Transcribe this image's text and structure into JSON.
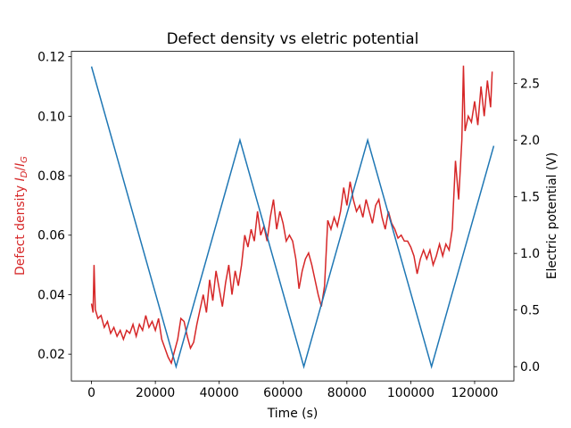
{
  "chart_data": {
    "type": "line",
    "title": "Defect density vs eletric potential",
    "xlabel": "Time (s)",
    "ylabel": [
      "Defect density ",
      "I",
      "D",
      "/",
      "I",
      "G"
    ],
    "y2label": "Electric potential (V)",
    "xlim": [
      -6300,
      132300
    ],
    "ylim": [
      0.011,
      0.1218
    ],
    "y2lim": [
      -0.126,
      2.784
    ],
    "xticks": [
      0,
      20000,
      40000,
      60000,
      80000,
      100000,
      120000
    ],
    "yticks": [
      0.02,
      0.04,
      0.06,
      0.08,
      {
        "value": 0.1,
        "label": "0.10"
      },
      0.12
    ],
    "y2ticks": [
      {
        "value": 0,
        "label": "0.0"
      },
      0.5,
      {
        "value": 1,
        "label": "1.0"
      },
      1.5,
      {
        "value": 2,
        "label": "2.0"
      },
      2.5
    ],
    "ycolor": "#d62728",
    "y2color": "#1f77b4",
    "series": [
      {
        "color": "#d62728",
        "axis": "y",
        "x": [
          0,
          500,
          800,
          1200,
          2000,
          3000,
          4000,
          5000,
          6000,
          7000,
          8000,
          9000,
          10000,
          11000,
          12000,
          13000,
          14000,
          15000,
          16000,
          17000,
          18000,
          19000,
          20000,
          21000,
          22000,
          23000,
          24000,
          25000,
          26000,
          27000,
          28000,
          29000,
          30000,
          31000,
          32000,
          33000,
          34000,
          35000,
          36000,
          37000,
          38000,
          39000,
          40000,
          41000,
          42000,
          43000,
          44000,
          45000,
          46000,
          47000,
          48000,
          49000,
          50000,
          51000,
          52000,
          53000,
          54000,
          55000,
          56000,
          57000,
          58000,
          59000,
          60000,
          61000,
          62000,
          63000,
          64000,
          65000,
          66000,
          67000,
          68000,
          69000,
          70000,
          71000,
          72000,
          73000,
          74000,
          75000,
          76000,
          77000,
          78000,
          79000,
          80000,
          81000,
          82000,
          83000,
          84000,
          85000,
          86000,
          87000,
          88000,
          89000,
          90000,
          91000,
          92000,
          93000,
          94000,
          95000,
          96000,
          97000,
          98000,
          99000,
          100000,
          101000,
          102000,
          103000,
          104000,
          105000,
          106000,
          107000,
          108000,
          109000,
          110000,
          111000,
          112000,
          113000,
          114000,
          115000,
          116000,
          116500,
          117000,
          118000,
          119000,
          120000,
          121000,
          122000,
          123000,
          124000,
          125000,
          125500
        ],
        "values": [
          0.037,
          0.034,
          0.05,
          0.035,
          0.032,
          0.033,
          0.029,
          0.031,
          0.027,
          0.029,
          0.026,
          0.028,
          0.025,
          0.028,
          0.027,
          0.03,
          0.026,
          0.03,
          0.028,
          0.033,
          0.029,
          0.031,
          0.028,
          0.032,
          0.025,
          0.022,
          0.019,
          0.017,
          0.021,
          0.025,
          0.032,
          0.031,
          0.026,
          0.022,
          0.024,
          0.03,
          0.035,
          0.04,
          0.034,
          0.045,
          0.038,
          0.048,
          0.042,
          0.036,
          0.044,
          0.05,
          0.04,
          0.048,
          0.043,
          0.05,
          0.06,
          0.056,
          0.062,
          0.058,
          0.068,
          0.06,
          0.063,
          0.058,
          0.066,
          0.072,
          0.062,
          0.068,
          0.064,
          0.058,
          0.06,
          0.058,
          0.052,
          0.042,
          0.048,
          0.052,
          0.054,
          0.05,
          0.045,
          0.04,
          0.036,
          0.043,
          0.065,
          0.062,
          0.066,
          0.063,
          0.068,
          0.076,
          0.07,
          0.078,
          0.072,
          0.068,
          0.07,
          0.066,
          0.072,
          0.068,
          0.064,
          0.07,
          0.072,
          0.066,
          0.062,
          0.068,
          0.064,
          0.062,
          0.059,
          0.06,
          0.058,
          0.058,
          0.056,
          0.053,
          0.047,
          0.052,
          0.055,
          0.052,
          0.055,
          0.05,
          0.053,
          0.057,
          0.053,
          0.057,
          0.055,
          0.062,
          0.085,
          0.072,
          0.092,
          0.117,
          0.095,
          0.1,
          0.098,
          0.105,
          0.097,
          0.11,
          0.1,
          0.112,
          0.103,
          0.115
        ]
      },
      {
        "color": "#1f77b4",
        "axis": "y2",
        "x": [
          0,
          26500,
          46500,
          66500,
          86500,
          106500,
          126000
        ],
        "values": [
          2.65,
          0,
          2.0,
          0,
          2.0,
          0,
          1.95
        ]
      }
    ]
  }
}
